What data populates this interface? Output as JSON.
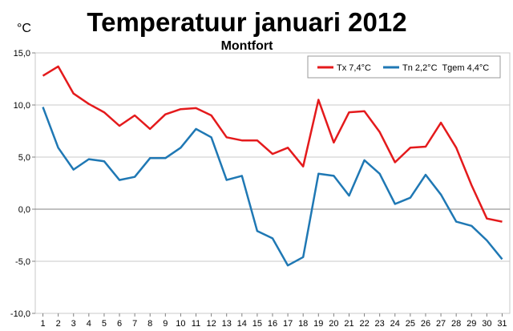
{
  "chart_data": {
    "type": "line",
    "title": "Temperatuur januari 2012",
    "subtitle": "Montfort",
    "unit_label": "°C",
    "ylim": [
      -10,
      15
    ],
    "yticks": [
      15,
      10,
      5,
      0,
      -5,
      -10
    ],
    "ytick_labels": [
      "15,0",
      "10,0",
      "5,0",
      "0,0",
      "-5,0",
      "-10,0"
    ],
    "x": [
      1,
      2,
      3,
      4,
      5,
      6,
      7,
      8,
      9,
      10,
      11,
      12,
      13,
      14,
      15,
      16,
      17,
      18,
      19,
      20,
      21,
      22,
      23,
      24,
      25,
      26,
      27,
      28,
      29,
      30,
      31
    ],
    "x_labels": [
      "1",
      "2",
      "3",
      "4",
      "5",
      "6",
      "7",
      "8",
      "9",
      "10",
      "11",
      "12",
      "13",
      "14",
      "15",
      "16",
      "17",
      "18",
      "19",
      "20",
      "21",
      "22",
      "23",
      "24",
      "25",
      "26",
      "27",
      "28",
      "29",
      "30",
      "31"
    ],
    "grid": "horizontal",
    "legend_position": "top-right",
    "series": [
      {
        "name": "Tx 7,4°C",
        "color": "#e41a1c",
        "values": [
          12.8,
          13.7,
          11.1,
          10.1,
          9.3,
          8.0,
          9.0,
          7.7,
          9.1,
          9.6,
          9.7,
          9.0,
          6.9,
          6.6,
          6.6,
          5.3,
          5.9,
          4.1,
          10.5,
          6.4,
          9.3,
          9.4,
          7.4,
          4.5,
          5.9,
          6.0,
          8.3,
          5.9,
          2.3,
          -0.9,
          -1.2
        ]
      },
      {
        "name": "Tn 2,2°C  Tgem 4,4°C",
        "color": "#1f78b4",
        "values": [
          9.8,
          5.9,
          3.8,
          4.8,
          4.6,
          2.8,
          3.1,
          4.9,
          4.9,
          5.9,
          7.7,
          6.9,
          2.8,
          3.2,
          -2.1,
          -2.8,
          -5.4,
          -4.6,
          3.4,
          3.2,
          1.3,
          4.7,
          3.4,
          0.5,
          1.1,
          3.3,
          1.4,
          -1.2,
          -1.6,
          -3.0,
          -4.8
        ]
      }
    ]
  }
}
